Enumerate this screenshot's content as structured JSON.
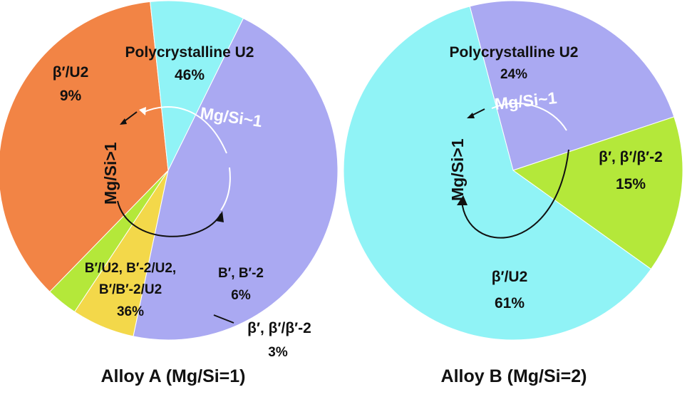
{
  "chart_data": [
    {
      "type": "pie",
      "caption": "Alloy A (Mg/Si=1)",
      "slices": [
        {
          "label": "Polycrystalline U2",
          "value": 46,
          "value_label": "46%",
          "color": "#aaa9f2"
        },
        {
          "label": "B′, B′-2",
          "value": 6,
          "value_label": "6%",
          "color": "#f3d84a"
        },
        {
          "label": "β′, β′/β′-2",
          "value": 3,
          "value_label": "3%",
          "color": "#b4e83a"
        },
        {
          "label": "B′/U2, B′-2/U2, B′/B′-2/U2",
          "label_lines": [
            "B′/U2, B′-2/U2,",
            "B′/B′-2/U2"
          ],
          "value": 36,
          "value_label": "36%",
          "color": "#f28445"
        },
        {
          "label": "β′/U2",
          "value": 9,
          "value_label": "9%",
          "color": "#90f3f6"
        }
      ],
      "annotations": [
        "Mg/Si~1",
        "Mg/Si>1"
      ]
    },
    {
      "type": "pie",
      "caption": "Alloy B (Mg/Si=2)",
      "slices": [
        {
          "label": "Polycrystalline U2",
          "value": 24,
          "value_label": "24%",
          "color": "#aaa9f2"
        },
        {
          "label": "β′, β′/β′-2",
          "value": 15,
          "value_label": "15%",
          "color": "#b4e83a"
        },
        {
          "label": "β′/U2",
          "value": 61,
          "value_label": "61%",
          "color": "#90f3f6"
        }
      ],
      "annotations": [
        "Mg/Si~1",
        "Mg/Si>1"
      ]
    }
  ]
}
